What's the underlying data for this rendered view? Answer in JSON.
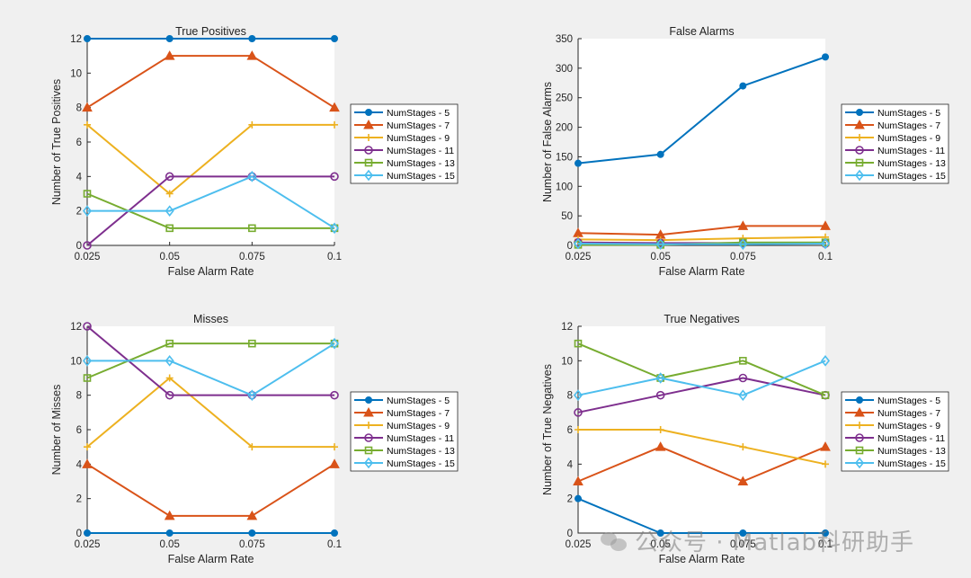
{
  "watermark": {
    "text": "公众号 · Matlab科研助手"
  },
  "colors": [
    "#0072BD",
    "#D95319",
    "#EDB120",
    "#7E2F8E",
    "#77AC30",
    "#4DBEEE"
  ],
  "chart_data": [
    {
      "id": "true-positives",
      "type": "line",
      "title": "True Positives",
      "xlabel": "False Alarm Rate",
      "ylabel": "Number of True Positives",
      "x": [
        0.025,
        0.05,
        0.075,
        0.1
      ],
      "xticklabels": [
        "0.025",
        "0.05",
        "0.075",
        "0.1"
      ],
      "ylim": [
        0,
        12
      ],
      "yticks": [
        0,
        2,
        4,
        6,
        8,
        10,
        12
      ],
      "legend_position": "right",
      "series": [
        {
          "name": "NumStages - 5",
          "marker": "circle-filled",
          "values": [
            12,
            12,
            12,
            12
          ]
        },
        {
          "name": "NumStages - 7",
          "marker": "triangle",
          "values": [
            8,
            11,
            11,
            8
          ]
        },
        {
          "name": "NumStages - 9",
          "marker": "plus",
          "values": [
            7,
            3,
            7,
            7
          ]
        },
        {
          "name": "NumStages - 11",
          "marker": "circle",
          "values": [
            0,
            4,
            4,
            4
          ]
        },
        {
          "name": "NumStages - 13",
          "marker": "square",
          "values": [
            3,
            1,
            1,
            1
          ]
        },
        {
          "name": "NumStages - 15",
          "marker": "diamond",
          "values": [
            2,
            2,
            4,
            1
          ]
        }
      ]
    },
    {
      "id": "false-alarms",
      "type": "line",
      "title": "False Alarms",
      "xlabel": "False Alarm Rate",
      "ylabel": "Number of False Alarms",
      "x": [
        0.025,
        0.05,
        0.075,
        0.1
      ],
      "xticklabels": [
        "0.025",
        "0.05",
        "0.075",
        "0.1"
      ],
      "ylim": [
        0,
        350
      ],
      "yticks": [
        0,
        50,
        100,
        150,
        200,
        250,
        300,
        350
      ],
      "legend_position": "right",
      "series": [
        {
          "name": "NumStages - 5",
          "marker": "circle-filled",
          "values": [
            139,
            154,
            270,
            319
          ]
        },
        {
          "name": "NumStages - 7",
          "marker": "triangle",
          "values": [
            21,
            18,
            33,
            33
          ]
        },
        {
          "name": "NumStages - 9",
          "marker": "plus",
          "values": [
            10,
            9,
            12,
            14
          ]
        },
        {
          "name": "NumStages - 11",
          "marker": "circle",
          "values": [
            5,
            4,
            4,
            3
          ]
        },
        {
          "name": "NumStages - 13",
          "marker": "square",
          "values": [
            1,
            1,
            5,
            5
          ]
        },
        {
          "name": "NumStages - 15",
          "marker": "diamond",
          "values": [
            3,
            2,
            2,
            3
          ]
        }
      ]
    },
    {
      "id": "misses",
      "type": "line",
      "title": "Misses",
      "xlabel": "False Alarm Rate",
      "ylabel": "Number of Misses",
      "x": [
        0.025,
        0.05,
        0.075,
        0.1
      ],
      "xticklabels": [
        "0.025",
        "0.05",
        "0.075",
        "0.1"
      ],
      "ylim": [
        0,
        12
      ],
      "yticks": [
        0,
        2,
        4,
        6,
        8,
        10,
        12
      ],
      "legend_position": "right",
      "series": [
        {
          "name": "NumStages - 5",
          "marker": "circle-filled",
          "values": [
            0,
            0,
            0,
            0
          ]
        },
        {
          "name": "NumStages - 7",
          "marker": "triangle",
          "values": [
            4,
            1,
            1,
            4
          ]
        },
        {
          "name": "NumStages - 9",
          "marker": "plus",
          "values": [
            5,
            9,
            5,
            5
          ]
        },
        {
          "name": "NumStages - 11",
          "marker": "circle",
          "values": [
            12,
            8,
            8,
            8
          ]
        },
        {
          "name": "NumStages - 13",
          "marker": "square",
          "values": [
            9,
            11,
            11,
            11
          ]
        },
        {
          "name": "NumStages - 15",
          "marker": "diamond",
          "values": [
            10,
            10,
            8,
            11
          ]
        }
      ]
    },
    {
      "id": "true-negatives",
      "type": "line",
      "title": "True Negatives",
      "xlabel": "False Alarm Rate",
      "ylabel": "Number of True Negatives",
      "x": [
        0.025,
        0.05,
        0.075,
        0.1
      ],
      "xticklabels": [
        "0.025",
        "0.05",
        "0.075",
        "0.1"
      ],
      "ylim": [
        0,
        12
      ],
      "yticks": [
        0,
        2,
        4,
        6,
        8,
        10,
        12
      ],
      "legend_position": "right",
      "series": [
        {
          "name": "NumStages - 5",
          "marker": "circle-filled",
          "values": [
            2,
            0,
            0,
            0
          ]
        },
        {
          "name": "NumStages - 7",
          "marker": "triangle",
          "values": [
            3,
            5,
            3,
            5
          ]
        },
        {
          "name": "NumStages - 9",
          "marker": "plus",
          "values": [
            6,
            6,
            5,
            4
          ]
        },
        {
          "name": "NumStages - 11",
          "marker": "circle",
          "values": [
            7,
            8,
            9,
            8
          ]
        },
        {
          "name": "NumStages - 13",
          "marker": "square",
          "values": [
            11,
            9,
            10,
            8
          ]
        },
        {
          "name": "NumStages - 15",
          "marker": "diamond",
          "values": [
            8,
            9,
            8,
            10
          ]
        }
      ]
    }
  ]
}
